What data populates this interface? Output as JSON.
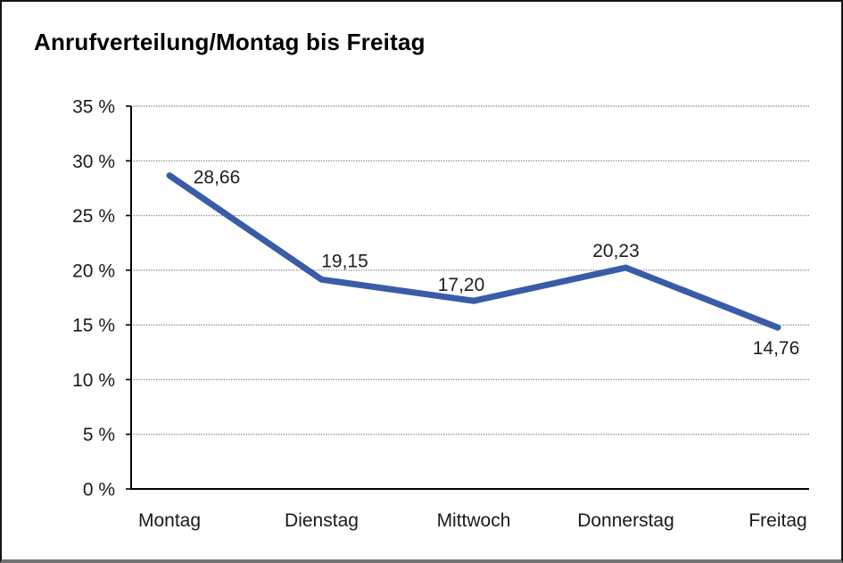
{
  "window": {
    "background_color": "#ffffff",
    "frame_border_color": "#161616",
    "frame_bottom_color": "#747474"
  },
  "chart_data": {
    "type": "line",
    "title": "Anrufverteilung/Montag bis Freitag",
    "categories": [
      "Montag",
      "Dienstag",
      "Mittwoch",
      "Donnerstag",
      "Freitag"
    ],
    "series": [
      {
        "name": "Anrufverteilung",
        "values": [
          28.66,
          19.15,
          17.2,
          20.23,
          14.76
        ]
      }
    ],
    "point_labels": [
      "28,66",
      "19,15",
      "17,20",
      "20,23",
      "14,76"
    ],
    "xlabel": "",
    "ylabel": "",
    "ylim": [
      0,
      35
    ],
    "ytick_step": 5,
    "ytick_labels": [
      "0 %",
      "5 %",
      "10 %",
      "15 %",
      "20 %",
      "25 %",
      "30 %",
      "35 %"
    ],
    "grid": "horizontal dotted gridlines at every 5 %",
    "legend": "none",
    "line_color": "#3a5ba7",
    "grid_color": "#8a8a8a",
    "axis_color": "#000000",
    "text_color": "#1a1a1a",
    "label_color": "#1d1d1d"
  }
}
